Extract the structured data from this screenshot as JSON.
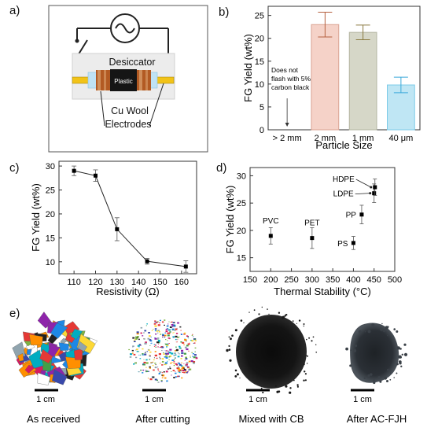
{
  "panels": {
    "a": {
      "label": "a)",
      "box_text": "Desiccator",
      "sample_text": "Plastic",
      "electrode_text_1": "Cu Wool",
      "electrode_text_2": "Electrodes",
      "icon": "ac-source-icon",
      "colors": {
        "electrode": "#f2c318",
        "copper": "#b25a23",
        "sample": "#151515",
        "desiccator": "#ececec",
        "tube": "#bfe2f4"
      }
    },
    "b": {
      "label": "b)"
    },
    "c": {
      "label": "c)"
    },
    "d": {
      "label": "d)"
    },
    "e": {
      "label": "e)",
      "scale_label": "1 cm",
      "captions": [
        "As received",
        "After cutting",
        "Mixed with CB",
        "After AC-FJH"
      ]
    }
  },
  "chart_data": [
    {
      "type": "bar",
      "panel": "b",
      "categories": [
        "> 2 mm",
        "2 mm",
        "1 mm",
        "40 μm"
      ],
      "values": [
        0,
        23.0,
        21.3,
        9.8
      ],
      "errors": [
        0,
        2.7,
        1.6,
        1.7
      ],
      "colors": [
        "#ffffff",
        "#f5d2c8",
        "#d6d7c8",
        "#bfe6f4"
      ],
      "edge_colors": [
        "#999999",
        "#d9a292",
        "#b3b4a1",
        "#7ccbe8"
      ],
      "err_colors": [
        "#999999",
        "#b5603f",
        "#8a7a40",
        "#3aa9d9"
      ],
      "xlabel": "Particle Size",
      "ylabel": "FG Yield (wt%)",
      "ylim": [
        0,
        27
      ],
      "yticks": [
        0,
        5,
        10,
        15,
        20,
        25
      ],
      "annotation": [
        "Does not",
        "flash with 5%",
        "carbon black"
      ]
    },
    {
      "type": "line",
      "panel": "c",
      "x": [
        110,
        120,
        130,
        144,
        162
      ],
      "y": [
        29.0,
        28.0,
        16.8,
        10.1,
        9.0
      ],
      "errors": [
        1.0,
        1.2,
        2.4,
        0.6,
        1.2
      ],
      "xlabel": "Resistivity (Ω)",
      "ylabel": "FG Yield (wt%)",
      "xlim": [
        103,
        167
      ],
      "ylim": [
        7.5,
        31
      ],
      "xticks": [
        110,
        120,
        130,
        140,
        150,
        160
      ],
      "yticks": [
        10,
        15,
        20,
        25,
        30
      ]
    },
    {
      "type": "scatter",
      "panel": "d",
      "points": [
        {
          "label": "PVC",
          "x": 200,
          "y": 19.0,
          "err": 1.5
        },
        {
          "label": "PET",
          "x": 300,
          "y": 18.6,
          "err": 1.9
        },
        {
          "label": "PS",
          "x": 400,
          "y": 17.7,
          "err": 1.2
        },
        {
          "label": "PP",
          "x": 420,
          "y": 22.9,
          "err": 1.7
        },
        {
          "label": "LDPE",
          "x": 450,
          "y": 26.8,
          "err": 1.7
        },
        {
          "label": "HDPE",
          "x": 452,
          "y": 27.9,
          "err": 1.5
        }
      ],
      "xlabel": "Thermal Stability (°C)",
      "ylabel": "FG Yield (wt%)",
      "xlim": [
        150,
        500
      ],
      "ylim": [
        12.5,
        31.5
      ],
      "xticks": [
        150,
        200,
        250,
        300,
        350,
        400,
        450,
        500
      ],
      "yticks": [
        15,
        20,
        25,
        30
      ]
    }
  ]
}
